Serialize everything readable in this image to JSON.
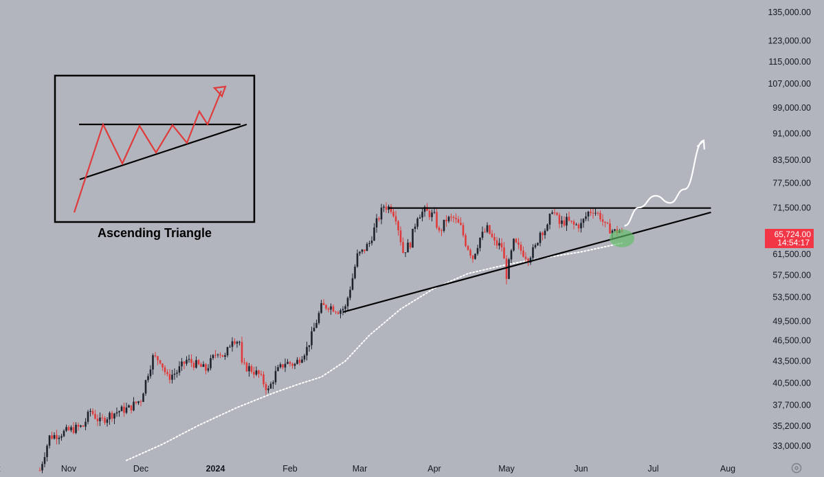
{
  "chart_data": {
    "type": "candlestick",
    "price_axis": {
      "scale": "log",
      "ticks": [
        "135,000.00",
        "123,000.00",
        "115,000.00",
        "107,000.00",
        "99,000.00",
        "91,000.00",
        "83,500.00",
        "77,500.00",
        "71,500.00",
        "61,500.00",
        "57,500.00",
        "53,500.00",
        "49,500.00",
        "46,500.00",
        "43,500.00",
        "40,500.00",
        "37,700.00",
        "35,200.00",
        "33,000.00"
      ],
      "tick_values": [
        135000,
        123000,
        115000,
        107000,
        99000,
        91000,
        83500,
        77500,
        71500,
        61500,
        57500,
        53500,
        49500,
        46500,
        43500,
        40500,
        37700,
        35200,
        33000
      ],
      "range": [
        31500,
        142000
      ]
    },
    "time_axis": {
      "ticks": [
        {
          "label": "t",
          "bold": false,
          "date": "2023-10-01"
        },
        {
          "label": "Nov",
          "bold": false,
          "date": "2023-11-01"
        },
        {
          "label": "Dec",
          "bold": false,
          "date": "2023-12-01"
        },
        {
          "label": "2024",
          "bold": true,
          "date": "2024-01-01"
        },
        {
          "label": "Feb",
          "bold": false,
          "date": "2024-02-01"
        },
        {
          "label": "Mar",
          "bold": false,
          "date": "2024-03-01"
        },
        {
          "label": "Apr",
          "bold": false,
          "date": "2024-04-01"
        },
        {
          "label": "May",
          "bold": false,
          "date": "2024-05-01"
        },
        {
          "label": "Jun",
          "bold": false,
          "date": "2024-06-01"
        },
        {
          "label": "Jul",
          "bold": false,
          "date": "2024-07-01"
        },
        {
          "label": "Aug",
          "bold": false,
          "date": "2024-08-01"
        }
      ]
    },
    "close_path": [
      [
        "2023-10-20",
        30500
      ],
      [
        "2023-10-24",
        34000
      ],
      [
        "2023-10-28",
        34300
      ],
      [
        "2023-11-02",
        34800
      ],
      [
        "2023-11-07",
        35200
      ],
      [
        "2023-11-10",
        37000
      ],
      [
        "2023-11-14",
        35700
      ],
      [
        "2023-11-18",
        36500
      ],
      [
        "2023-11-22",
        37000
      ],
      [
        "2023-11-26",
        37300
      ],
      [
        "2023-12-01",
        38400
      ],
      [
        "2023-12-04",
        41900
      ],
      [
        "2023-12-06",
        44000
      ],
      [
        "2023-12-09",
        43700
      ],
      [
        "2023-12-12",
        41200
      ],
      [
        "2023-12-16",
        42000
      ],
      [
        "2023-12-20",
        43600
      ],
      [
        "2023-12-24",
        43000
      ],
      [
        "2023-12-28",
        42300
      ],
      [
        "2024-01-02",
        45000
      ],
      [
        "2024-01-05",
        44000
      ],
      [
        "2024-01-08",
        46900
      ],
      [
        "2024-01-11",
        46300
      ],
      [
        "2024-01-12",
        42800
      ],
      [
        "2024-01-15",
        42500
      ],
      [
        "2024-01-19",
        41600
      ],
      [
        "2024-01-23",
        39500
      ],
      [
        "2024-01-26",
        41800
      ],
      [
        "2024-01-30",
        43300
      ],
      [
        "2024-02-03",
        43000
      ],
      [
        "2024-02-08",
        45300
      ],
      [
        "2024-02-10",
        47200
      ],
      [
        "2024-02-14",
        51800
      ],
      [
        "2024-02-17",
        52100
      ],
      [
        "2024-02-21",
        51300
      ],
      [
        "2024-02-24",
        51700
      ],
      [
        "2024-02-27",
        57000
      ],
      [
        "2024-02-29",
        61200
      ],
      [
        "2024-03-02",
        62000
      ],
      [
        "2024-03-05",
        63800
      ],
      [
        "2024-03-08",
        68200
      ],
      [
        "2024-03-11",
        72000
      ],
      [
        "2024-03-14",
        71500
      ],
      [
        "2024-03-16",
        69500
      ],
      [
        "2024-03-19",
        62000
      ],
      [
        "2024-03-22",
        63800
      ],
      [
        "2024-03-25",
        69900
      ],
      [
        "2024-03-28",
        70800
      ],
      [
        "2024-04-01",
        69600
      ],
      [
        "2024-04-03",
        65900
      ],
      [
        "2024-04-06",
        68900
      ],
      [
        "2024-04-09",
        69100
      ],
      [
        "2024-04-12",
        67100
      ],
      [
        "2024-04-14",
        63900
      ],
      [
        "2024-04-17",
        60900
      ],
      [
        "2024-04-20",
        64900
      ],
      [
        "2024-04-23",
        66800
      ],
      [
        "2024-04-26",
        63800
      ],
      [
        "2024-04-29",
        63100
      ],
      [
        "2024-05-01",
        57500
      ],
      [
        "2024-05-04",
        63900
      ],
      [
        "2024-05-07",
        62300
      ],
      [
        "2024-05-10",
        60800
      ],
      [
        "2024-05-13",
        62900
      ],
      [
        "2024-05-15",
        66200
      ],
      [
        "2024-05-18",
        67000
      ],
      [
        "2024-05-20",
        71400
      ],
      [
        "2024-05-23",
        67900
      ],
      [
        "2024-05-26",
        68600
      ],
      [
        "2024-05-29",
        67600
      ],
      [
        "2024-06-01",
        67700
      ],
      [
        "2024-06-04",
        70500
      ],
      [
        "2024-06-06",
        71100
      ],
      [
        "2024-06-09",
        69600
      ],
      [
        "2024-06-11",
        67300
      ],
      [
        "2024-06-13",
        66800
      ],
      [
        "2024-06-15",
        66200
      ],
      [
        "2024-06-17",
        66500
      ],
      [
        "2024-06-18",
        65724
      ]
    ],
    "moving_average": [
      [
        "2023-11-25",
        31500
      ],
      [
        "2023-12-10",
        33200
      ],
      [
        "2023-12-25",
        35300
      ],
      [
        "2024-01-10",
        37400
      ],
      [
        "2024-01-25",
        39200
      ],
      [
        "2024-02-05",
        40400
      ],
      [
        "2024-02-14",
        41300
      ],
      [
        "2024-02-24",
        43500
      ],
      [
        "2024-03-05",
        47300
      ],
      [
        "2024-03-18",
        51500
      ],
      [
        "2024-04-01",
        55100
      ],
      [
        "2024-04-15",
        57800
      ],
      [
        "2024-05-01",
        59500
      ],
      [
        "2024-05-15",
        60700
      ],
      [
        "2024-06-01",
        62000
      ],
      [
        "2024-06-18",
        63800
      ]
    ],
    "resistance_line": {
      "from": [
        "2024-03-13",
        71500
      ],
      "to": [
        "2024-07-25",
        71500
      ]
    },
    "support_line": {
      "from": [
        "2024-02-23",
        51000
      ],
      "to": [
        "2024-07-25",
        70500
      ]
    },
    "projection": [
      [
        "2024-06-19",
        67500
      ],
      [
        "2024-06-25",
        71600
      ],
      [
        "2024-07-02",
        74400
      ],
      [
        "2024-07-08",
        72700
      ],
      [
        "2024-07-14",
        76000
      ],
      [
        "2024-07-22",
        89000
      ]
    ],
    "highlight": {
      "date": "2024-06-18",
      "value": 64800
    },
    "current_price": {
      "value": 65724,
      "label": "65,724.00",
      "countdown": "14:54:17",
      "color": "#f23645"
    },
    "colors": {
      "up": "#1e222d",
      "down": "#e03a3a",
      "ma": "#ffffff",
      "lines": "#000000",
      "projection": "#ffffff",
      "highlight": "#5fbf66"
    },
    "inset": {
      "title": "Ascending Triangle",
      "pattern": "ascending-triangle",
      "zigzag_color": "#e03a3a"
    }
  }
}
